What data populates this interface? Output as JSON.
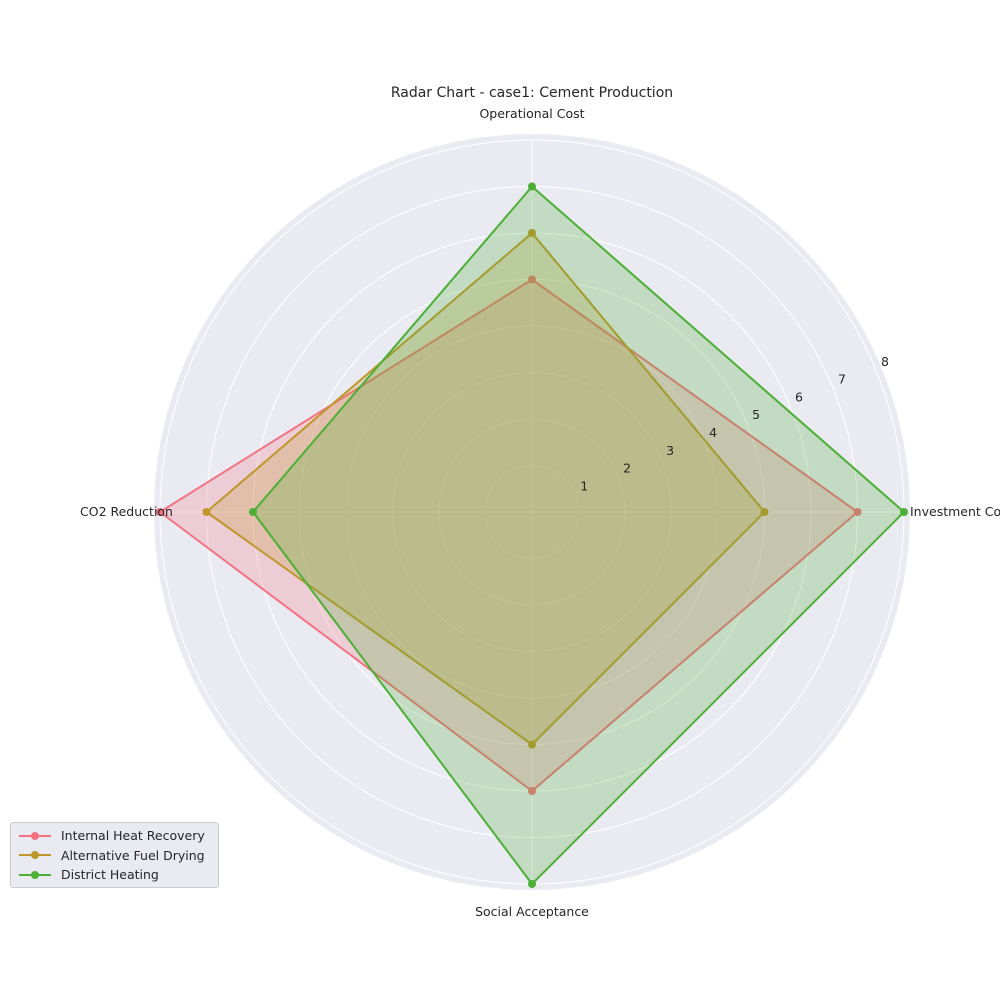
{
  "chart_data": {
    "type": "radar",
    "title": "Radar Chart - case1: Cement Production",
    "axes": [
      "Investment Cost",
      "Operational Cost",
      "CO2 Reduction",
      "Social Acceptance"
    ],
    "rlim": [
      0,
      8
    ],
    "rticks": [
      1,
      2,
      3,
      4,
      5,
      6,
      7,
      8
    ],
    "grid": true,
    "legend_position": "lower-left",
    "series": [
      {
        "name": "Internal Heat Recovery",
        "color": "#f2727f",
        "values": [
          7,
          5,
          8,
          6
        ]
      },
      {
        "name": "Alternative Fuel Drying",
        "color": "#c0962b",
        "values": [
          5,
          6,
          7,
          5
        ]
      },
      {
        "name": "District Heating",
        "color": "#4daf35",
        "values": [
          8,
          7,
          6,
          8
        ]
      }
    ]
  }
}
